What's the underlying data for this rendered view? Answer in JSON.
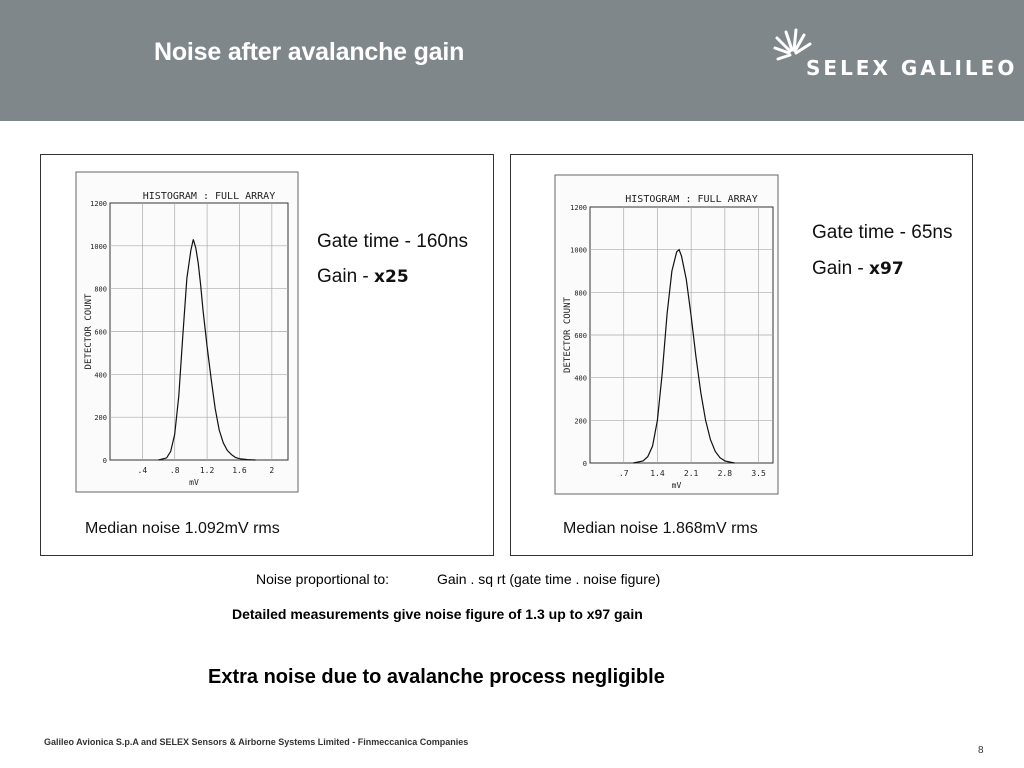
{
  "slide": {
    "title": "Noise after avalanche gain",
    "page_number": "8",
    "footer": "Galileo Avionica S.p.A and SELEX Sensors & Airborne Systems Limited - Finmeccanica Companies"
  },
  "logo": {
    "text": "SELEX GALILEO"
  },
  "panels": [
    {
      "gate_time": "Gate time - 160ns",
      "gain_prefix": "Gain - ",
      "gain_value": "x25",
      "median": "Median noise 1.092mV rms"
    },
    {
      "gate_time": "Gate time - 65ns",
      "gain_prefix": "Gain - ",
      "gain_value": "x97",
      "median": "Median noise 1.868mV rms"
    }
  ],
  "notes": {
    "proportional_label": "Noise proportional to:",
    "proportional_formula": "Gain . sq rt (gate time . noise figure)",
    "detailed": "Detailed measurements give noise figure of 1.3 up to x97 gain",
    "conclusion": "Extra noise due to avalanche process negligible"
  },
  "chart_data": [
    {
      "type": "line",
      "title": "HISTOGRAM : FULL ARRAY",
      "xlabel": "mV",
      "ylabel": "DETECTOR COUNT",
      "xlim": [
        0,
        2.2
      ],
      "ylim": [
        0,
        1200
      ],
      "x_ticks": [
        ".4",
        ".8",
        "1.2",
        "1.6",
        "2"
      ],
      "x_tick_values": [
        0.4,
        0.8,
        1.2,
        1.6,
        2.0
      ],
      "y_ticks": [
        "0",
        "200",
        "400",
        "600",
        "800",
        "1000",
        "1200"
      ],
      "y_tick_values": [
        0,
        200,
        400,
        600,
        800,
        1000,
        1200
      ],
      "grid": true,
      "series": [
        {
          "x": [
            0.6,
            0.7,
            0.75,
            0.8,
            0.85,
            0.9,
            0.95,
            1.0,
            1.03,
            1.06,
            1.09,
            1.12,
            1.15,
            1.2,
            1.25,
            1.3,
            1.35,
            1.4,
            1.45,
            1.5,
            1.55,
            1.6,
            1.7,
            1.8
          ],
          "y": [
            0,
            10,
            40,
            120,
            300,
            580,
            850,
            980,
            1030,
            990,
            920,
            820,
            700,
            530,
            380,
            240,
            140,
            80,
            45,
            25,
            12,
            6,
            2,
            0
          ]
        }
      ]
    },
    {
      "type": "line",
      "title": "HISTOGRAM : FULL ARRAY",
      "xlabel": "mV",
      "ylabel": "DETECTOR COUNT",
      "xlim": [
        0,
        3.8
      ],
      "ylim": [
        0,
        1200
      ],
      "x_ticks": [
        ".7",
        "1.4",
        "2.1",
        "2.8",
        "3.5"
      ],
      "x_tick_values": [
        0.7,
        1.4,
        2.1,
        2.8,
        3.5
      ],
      "y_ticks": [
        "0",
        "200",
        "400",
        "600",
        "800",
        "1000",
        "1200"
      ],
      "y_tick_values": [
        0,
        200,
        400,
        600,
        800,
        1000,
        1200
      ],
      "grid": true,
      "series": [
        {
          "x": [
            0.9,
            1.1,
            1.2,
            1.3,
            1.4,
            1.5,
            1.6,
            1.7,
            1.8,
            1.85,
            1.9,
            2.0,
            2.1,
            2.2,
            2.3,
            2.4,
            2.5,
            2.6,
            2.7,
            2.8,
            3.0
          ],
          "y": [
            0,
            10,
            30,
            80,
            200,
            420,
            700,
            900,
            990,
            1000,
            970,
            860,
            690,
            500,
            330,
            200,
            110,
            55,
            25,
            10,
            0
          ]
        }
      ]
    }
  ]
}
